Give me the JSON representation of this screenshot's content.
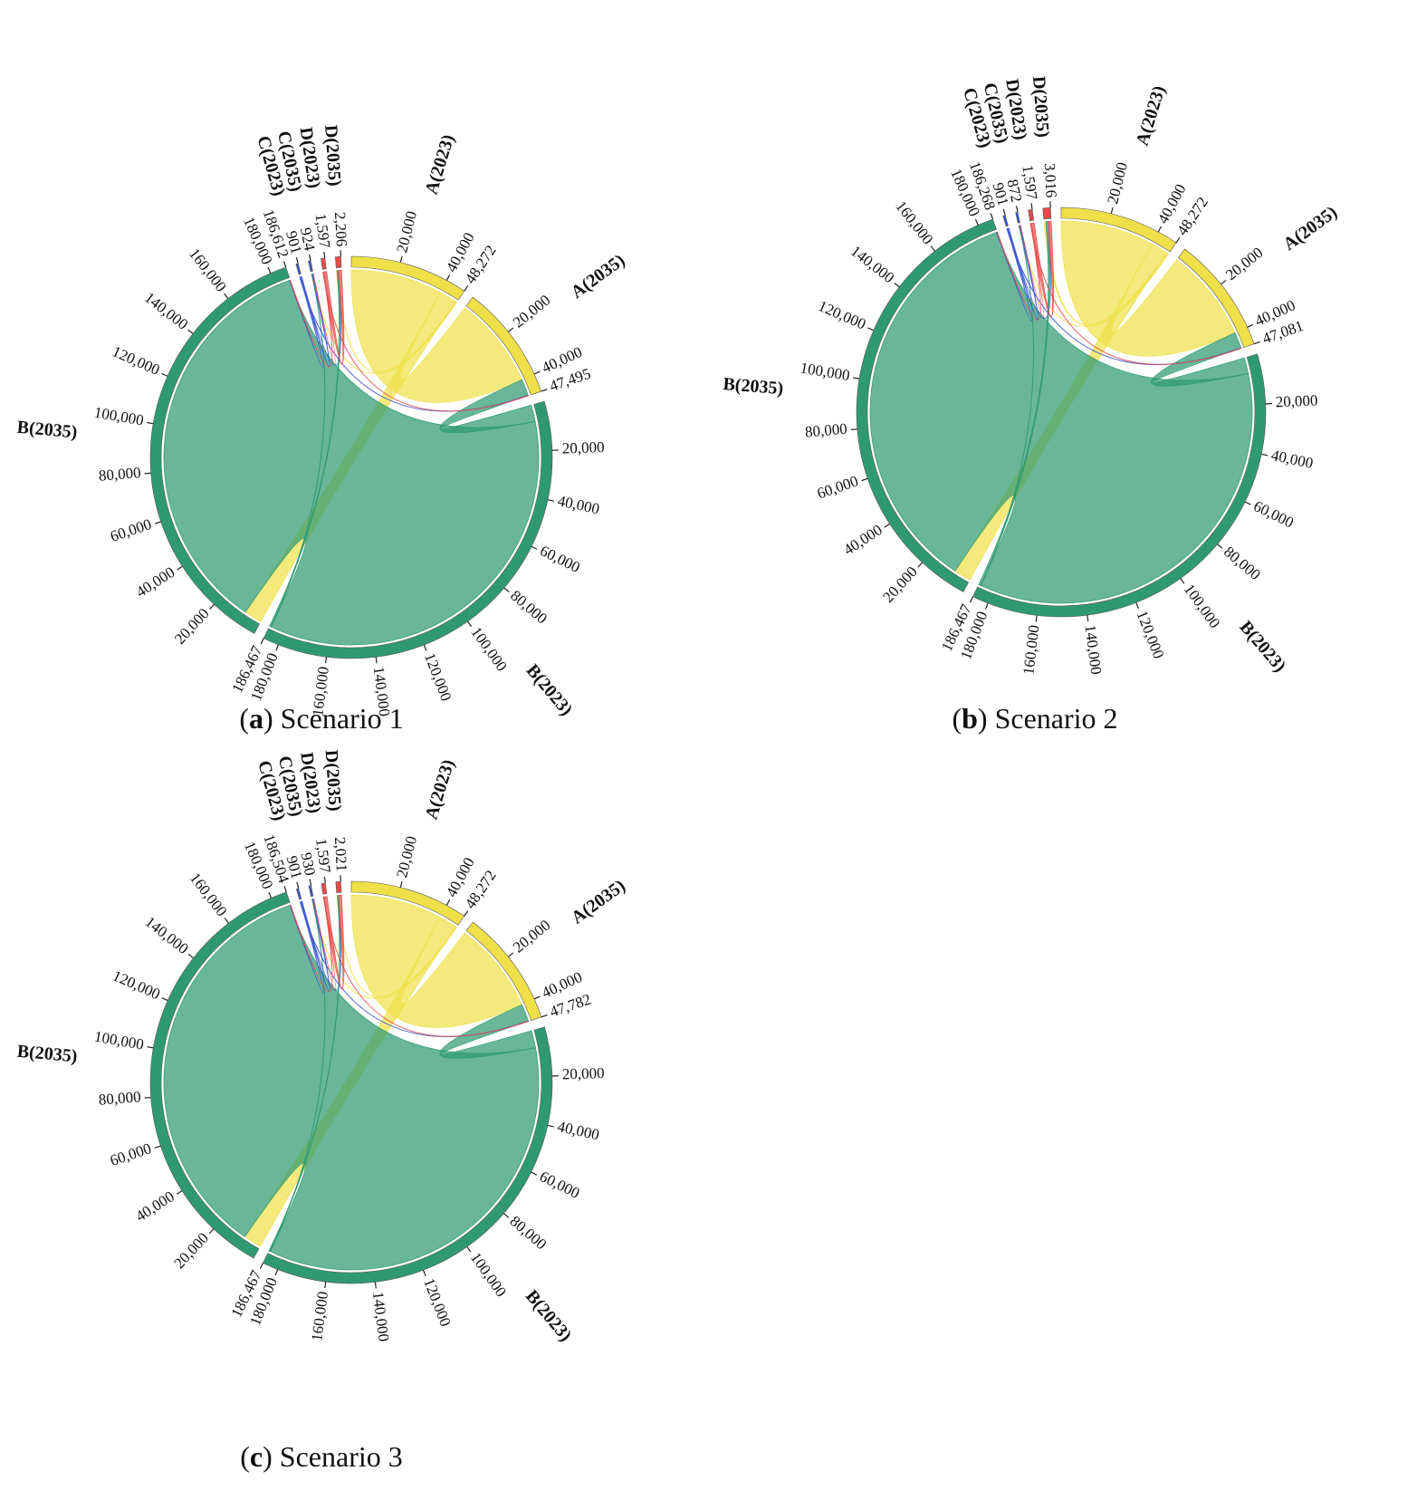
{
  "chart_data": [
    {
      "type": "chord",
      "caption": [
        "(",
        "a",
        ") Scenario 1"
      ],
      "nodes": [
        {
          "name": "A(2023)",
          "color": "#efe04a",
          "value": 48272,
          "value_label": "48,272",
          "ticks": [
            {
              "value": 20000,
              "label": "20,000"
            },
            {
              "value": 40000,
              "label": "40,000"
            }
          ]
        },
        {
          "name": "A(2035)",
          "color": "#efe04a",
          "value": 47495,
          "value_label": "47,495",
          "ticks": [
            {
              "value": 20000,
              "label": "20,000"
            },
            {
              "value": 40000,
              "label": "40,000"
            }
          ]
        },
        {
          "name": "B(2023)",
          "color": "#2f9a72",
          "value": 186467,
          "value_label": "186,467",
          "ticks": [
            {
              "value": 20000,
              "label": "20,000"
            },
            {
              "value": 40000,
              "label": "40,000"
            },
            {
              "value": 60000,
              "label": "60,000"
            },
            {
              "value": 80000,
              "label": "80,000"
            },
            {
              "value": 100000,
              "label": "100,000"
            },
            {
              "value": 120000,
              "label": "120,000"
            },
            {
              "value": 140000,
              "label": "140,000"
            },
            {
              "value": 160000,
              "label": "160,000"
            },
            {
              "value": 180000,
              "label": "180,000"
            }
          ]
        },
        {
          "name": "B(2035)",
          "color": "#2f9a72",
          "value": 186612,
          "value_label": "186,612",
          "ticks": [
            {
              "value": 20000,
              "label": "20,000"
            },
            {
              "value": 40000,
              "label": "40,000"
            },
            {
              "value": 60000,
              "label": "60,000"
            },
            {
              "value": 80000,
              "label": "80,000"
            },
            {
              "value": 100000,
              "label": "100,000"
            },
            {
              "value": 120000,
              "label": "120,000"
            },
            {
              "value": 140000,
              "label": "140,000"
            },
            {
              "value": 160000,
              "label": "160,000"
            },
            {
              "value": 180000,
              "label": "180,000"
            }
          ]
        },
        {
          "name": "C(2023)",
          "color": "#3a56d4",
          "value": 901,
          "value_label": "901",
          "ticks": []
        },
        {
          "name": "C(2035)",
          "color": "#3a56d4",
          "value": 924,
          "value_label": "924",
          "ticks": []
        },
        {
          "name": "D(2023)",
          "color": "#e84a4a",
          "value": 1597,
          "value_label": "1,597",
          "ticks": []
        },
        {
          "name": "D(2035)",
          "color": "#e84a4a",
          "value": 2206,
          "value_label": "2,206",
          "ticks": []
        }
      ],
      "flows": [
        {
          "source": "A(2023)",
          "target": "A(2035)",
          "value": 40000
        },
        {
          "source": "A(2023)",
          "target": "B(2035)",
          "value": 7800
        },
        {
          "source": "A(2023)",
          "target": "C(2035)",
          "value": 200
        },
        {
          "source": "A(2023)",
          "target": "D(2035)",
          "value": 272
        },
        {
          "source": "B(2023)",
          "target": "A(2035)",
          "value": 7245
        },
        {
          "source": "B(2023)",
          "target": "B(2035)",
          "value": 178462
        },
        {
          "source": "B(2023)",
          "target": "C(2035)",
          "value": 200
        },
        {
          "source": "B(2023)",
          "target": "D(2035)",
          "value": 560
        },
        {
          "source": "C(2023)",
          "target": "A(2035)",
          "value": 150
        },
        {
          "source": "C(2023)",
          "target": "B(2035)",
          "value": 200
        },
        {
          "source": "C(2023)",
          "target": "C(2035)",
          "value": 500
        },
        {
          "source": "C(2023)",
          "target": "D(2035)",
          "value": 51
        },
        {
          "source": "D(2023)",
          "target": "A(2035)",
          "value": 100
        },
        {
          "source": "D(2023)",
          "target": "B(2035)",
          "value": 150
        },
        {
          "source": "D(2023)",
          "target": "C(2035)",
          "value": 24
        },
        {
          "source": "D(2023)",
          "target": "D(2035)",
          "value": 1323
        }
      ]
    },
    {
      "type": "chord",
      "caption": [
        "(",
        "b",
        ") Scenario 2"
      ],
      "nodes": [
        {
          "name": "A(2023)",
          "color": "#efe04a",
          "value": 48272,
          "value_label": "48,272",
          "ticks": [
            {
              "value": 20000,
              "label": "20,000"
            },
            {
              "value": 40000,
              "label": "40,000"
            }
          ]
        },
        {
          "name": "A(2035)",
          "color": "#efe04a",
          "value": 47081,
          "value_label": "47,081",
          "ticks": [
            {
              "value": 20000,
              "label": "20,000"
            },
            {
              "value": 40000,
              "label": "40,000"
            }
          ]
        },
        {
          "name": "B(2023)",
          "color": "#2f9a72",
          "value": 186467,
          "value_label": "186,467",
          "ticks": [
            {
              "value": 20000,
              "label": "20,000"
            },
            {
              "value": 40000,
              "label": "40,000"
            },
            {
              "value": 60000,
              "label": "60,000"
            },
            {
              "value": 80000,
              "label": "80,000"
            },
            {
              "value": 100000,
              "label": "100,000"
            },
            {
              "value": 120000,
              "label": "120,000"
            },
            {
              "value": 140000,
              "label": "140,000"
            },
            {
              "value": 160000,
              "label": "160,000"
            },
            {
              "value": 180000,
              "label": "180,000"
            }
          ]
        },
        {
          "name": "B(2035)",
          "color": "#2f9a72",
          "value": 186268,
          "value_label": "186,268",
          "ticks": [
            {
              "value": 20000,
              "label": "20,000"
            },
            {
              "value": 40000,
              "label": "40,000"
            },
            {
              "value": 60000,
              "label": "60,000"
            },
            {
              "value": 80000,
              "label": "80,000"
            },
            {
              "value": 100000,
              "label": "100,000"
            },
            {
              "value": 120000,
              "label": "120,000"
            },
            {
              "value": 140000,
              "label": "140,000"
            },
            {
              "value": 160000,
              "label": "160,000"
            },
            {
              "value": 180000,
              "label": "180,000"
            }
          ]
        },
        {
          "name": "C(2023)",
          "color": "#3a56d4",
          "value": 901,
          "value_label": "901",
          "ticks": []
        },
        {
          "name": "C(2035)",
          "color": "#3a56d4",
          "value": 872,
          "value_label": "872",
          "ticks": []
        },
        {
          "name": "D(2023)",
          "color": "#e84a4a",
          "value": 1597,
          "value_label": "1,597",
          "ticks": []
        },
        {
          "name": "D(2035)",
          "color": "#e84a4a",
          "value": 3016,
          "value_label": "3,016",
          "ticks": []
        }
      ],
      "flows": [
        {
          "source": "A(2023)",
          "target": "A(2035)",
          "value": 40000
        },
        {
          "source": "A(2023)",
          "target": "B(2035)",
          "value": 7300
        },
        {
          "source": "A(2023)",
          "target": "C(2035)",
          "value": 200
        },
        {
          "source": "A(2023)",
          "target": "D(2035)",
          "value": 772
        },
        {
          "source": "B(2023)",
          "target": "A(2035)",
          "value": 6831
        },
        {
          "source": "B(2023)",
          "target": "B(2035)",
          "value": 178618
        },
        {
          "source": "B(2023)",
          "target": "C(2035)",
          "value": 148
        },
        {
          "source": "B(2023)",
          "target": "D(2035)",
          "value": 870
        },
        {
          "source": "C(2023)",
          "target": "A(2035)",
          "value": 150
        },
        {
          "source": "C(2023)",
          "target": "B(2035)",
          "value": 200
        },
        {
          "source": "C(2023)",
          "target": "C(2035)",
          "value": 500
        },
        {
          "source": "C(2023)",
          "target": "D(2035)",
          "value": 51
        },
        {
          "source": "D(2023)",
          "target": "A(2035)",
          "value": 100
        },
        {
          "source": "D(2023)",
          "target": "B(2035)",
          "value": 150
        },
        {
          "source": "D(2023)",
          "target": "C(2035)",
          "value": 24
        },
        {
          "source": "D(2023)",
          "target": "D(2035)",
          "value": 1323
        }
      ]
    },
    {
      "type": "chord",
      "caption": [
        "(",
        "c",
        ") Scenario 3"
      ],
      "nodes": [
        {
          "name": "A(2023)",
          "color": "#efe04a",
          "value": 48272,
          "value_label": "48,272",
          "ticks": [
            {
              "value": 20000,
              "label": "20,000"
            },
            {
              "value": 40000,
              "label": "40,000"
            }
          ]
        },
        {
          "name": "A(2035)",
          "color": "#efe04a",
          "value": 47782,
          "value_label": "47,782",
          "ticks": [
            {
              "value": 20000,
              "label": "20,000"
            },
            {
              "value": 40000,
              "label": "40,000"
            }
          ]
        },
        {
          "name": "B(2023)",
          "color": "#2f9a72",
          "value": 186467,
          "value_label": "186,467",
          "ticks": [
            {
              "value": 20000,
              "label": "20,000"
            },
            {
              "value": 40000,
              "label": "40,000"
            },
            {
              "value": 60000,
              "label": "60,000"
            },
            {
              "value": 80000,
              "label": "80,000"
            },
            {
              "value": 100000,
              "label": "100,000"
            },
            {
              "value": 120000,
              "label": "120,000"
            },
            {
              "value": 140000,
              "label": "140,000"
            },
            {
              "value": 160000,
              "label": "160,000"
            },
            {
              "value": 180000,
              "label": "180,000"
            }
          ]
        },
        {
          "name": "B(2035)",
          "color": "#2f9a72",
          "value": 186504,
          "value_label": "186,504",
          "ticks": [
            {
              "value": 20000,
              "label": "20,000"
            },
            {
              "value": 40000,
              "label": "40,000"
            },
            {
              "value": 60000,
              "label": "60,000"
            },
            {
              "value": 80000,
              "label": "80,000"
            },
            {
              "value": 100000,
              "label": "100,000"
            },
            {
              "value": 120000,
              "label": "120,000"
            },
            {
              "value": 140000,
              "label": "140,000"
            },
            {
              "value": 160000,
              "label": "160,000"
            },
            {
              "value": 180000,
              "label": "180,000"
            }
          ]
        },
        {
          "name": "C(2023)",
          "color": "#3a56d4",
          "value": 901,
          "value_label": "901",
          "ticks": []
        },
        {
          "name": "C(2035)",
          "color": "#3a56d4",
          "value": 930,
          "value_label": "930",
          "ticks": []
        },
        {
          "name": "D(2023)",
          "color": "#e84a4a",
          "value": 1597,
          "value_label": "1,597",
          "ticks": []
        },
        {
          "name": "D(2035)",
          "color": "#e84a4a",
          "value": 2021,
          "value_label": "2,021",
          "ticks": []
        }
      ],
      "flows": [
        {
          "source": "A(2023)",
          "target": "A(2035)",
          "value": 40000
        },
        {
          "source": "A(2023)",
          "target": "B(2035)",
          "value": 7800
        },
        {
          "source": "A(2023)",
          "target": "C(2035)",
          "value": 200
        },
        {
          "source": "A(2023)",
          "target": "D(2035)",
          "value": 272
        },
        {
          "source": "B(2023)",
          "target": "A(2035)",
          "value": 7532
        },
        {
          "source": "B(2023)",
          "target": "B(2035)",
          "value": 178354
        },
        {
          "source": "B(2023)",
          "target": "C(2035)",
          "value": 206
        },
        {
          "source": "B(2023)",
          "target": "D(2035)",
          "value": 375
        },
        {
          "source": "C(2023)",
          "target": "A(2035)",
          "value": 150
        },
        {
          "source": "C(2023)",
          "target": "B(2035)",
          "value": 200
        },
        {
          "source": "C(2023)",
          "target": "C(2035)",
          "value": 500
        },
        {
          "source": "C(2023)",
          "target": "D(2035)",
          "value": 51
        },
        {
          "source": "D(2023)",
          "target": "A(2035)",
          "value": 100
        },
        {
          "source": "D(2023)",
          "target": "B(2035)",
          "value": 150
        },
        {
          "source": "D(2023)",
          "target": "C(2035)",
          "value": 24
        },
        {
          "source": "D(2023)",
          "target": "D(2035)",
          "value": 1323
        }
      ]
    }
  ]
}
